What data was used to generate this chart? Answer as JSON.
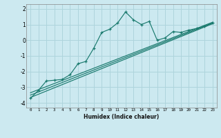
{
  "xlabel": "Humidex (Indice chaleur)",
  "ylabel": "",
  "bg_color": "#cce9f0",
  "grid_color": "#aed4dc",
  "line_color": "#1a7a6e",
  "spine_color": "#888888",
  "xlim": [
    -0.5,
    23.5
  ],
  "ylim": [
    -4.3,
    2.3
  ],
  "xticks": [
    0,
    1,
    2,
    3,
    4,
    5,
    6,
    7,
    8,
    9,
    10,
    11,
    12,
    13,
    14,
    15,
    16,
    17,
    18,
    19,
    20,
    21,
    22,
    23
  ],
  "yticks": [
    -4,
    -3,
    -2,
    -1,
    0,
    1,
    2
  ],
  "series1_x": [
    0,
    1,
    2,
    3,
    4,
    5,
    6,
    7,
    8,
    9,
    10,
    11,
    12,
    13,
    14,
    15,
    16,
    17,
    18,
    19,
    20,
    21,
    22,
    23
  ],
  "series1_y": [
    -3.7,
    -3.2,
    -2.6,
    -2.55,
    -2.5,
    -2.2,
    -1.5,
    -1.35,
    -0.5,
    0.5,
    0.7,
    1.1,
    1.8,
    1.3,
    1.0,
    1.2,
    0.0,
    0.15,
    0.55,
    0.5,
    0.65,
    0.75,
    0.9,
    1.1
  ],
  "trend1_x": [
    0,
    23
  ],
  "trend1_y": [
    -3.65,
    1.05
  ],
  "trend2_x": [
    0,
    23
  ],
  "trend2_y": [
    -3.5,
    1.1
  ],
  "trend3_x": [
    0,
    23
  ],
  "trend3_y": [
    -3.35,
    1.15
  ]
}
